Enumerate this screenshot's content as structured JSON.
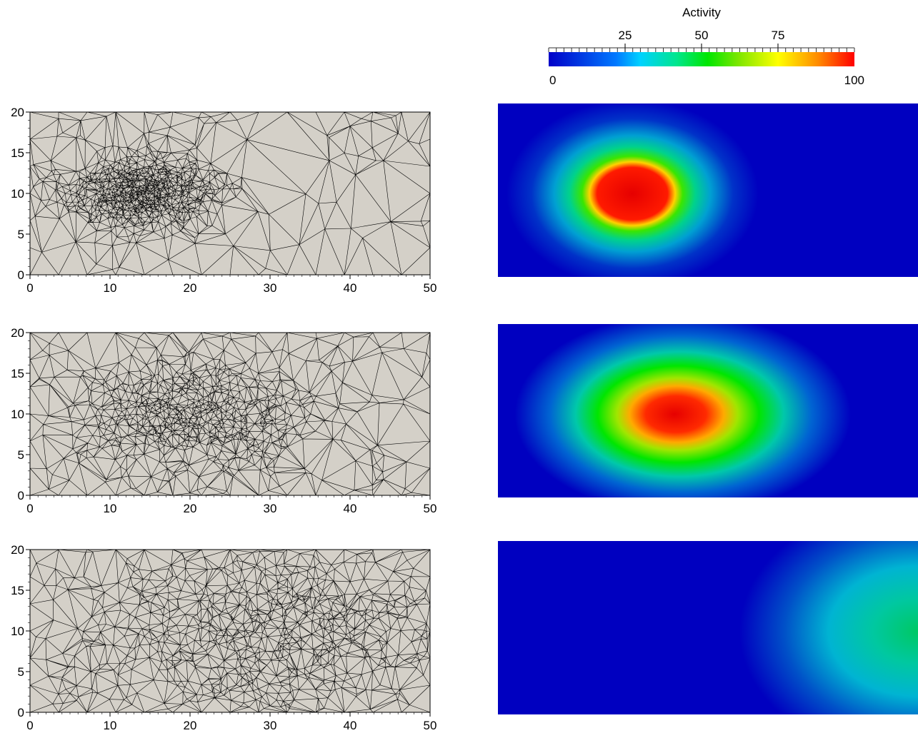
{
  "colorbar": {
    "title": "Activity",
    "min_label": "0",
    "max_label": "100",
    "major_ticks": [
      "25",
      "50",
      "75"
    ],
    "range": [
      0,
      100
    ],
    "colormap": [
      "#0000c8",
      "#00c8ff",
      "#00e600",
      "#ffff00",
      "#ff0000"
    ]
  },
  "chart_data": [
    {
      "type": "mesh",
      "panel": "top",
      "x_range": [
        0,
        50
      ],
      "y_range": [
        0,
        20
      ],
      "x_ticks": [
        0,
        10,
        20,
        30,
        40,
        50
      ],
      "y_ticks": [
        0,
        5,
        10,
        15,
        20
      ],
      "mesh_focus": {
        "x": 14,
        "y": 10
      },
      "background": "#d4d0c8"
    },
    {
      "type": "mesh",
      "panel": "middle",
      "x_range": [
        0,
        50
      ],
      "y_range": [
        0,
        20
      ],
      "x_ticks": [
        0,
        10,
        20,
        30,
        40,
        50
      ],
      "y_ticks": [
        0,
        5,
        10,
        15,
        20
      ],
      "mesh_focus": {
        "x": 20,
        "y": 10
      },
      "background": "#d4d0c8"
    },
    {
      "type": "mesh",
      "panel": "bottom",
      "x_range": [
        0,
        50
      ],
      "y_range": [
        0,
        20
      ],
      "x_ticks": [
        0,
        10,
        20,
        30,
        40,
        50
      ],
      "y_ticks": [
        0,
        5,
        10,
        15,
        20
      ],
      "mesh_focus": {
        "x": 30,
        "y": 10
      },
      "background": "#d4d0c8"
    },
    {
      "type": "heatmap",
      "panel": "top",
      "peak": {
        "x": 16,
        "y": 10.5,
        "value": 100
      }
    },
    {
      "type": "heatmap",
      "panel": "middle",
      "peak": {
        "x": 23,
        "y": 10.5,
        "value": 100
      }
    },
    {
      "type": "heatmap",
      "panel": "bottom",
      "peak": {
        "x": 50,
        "y": 10,
        "value": 45
      }
    }
  ]
}
